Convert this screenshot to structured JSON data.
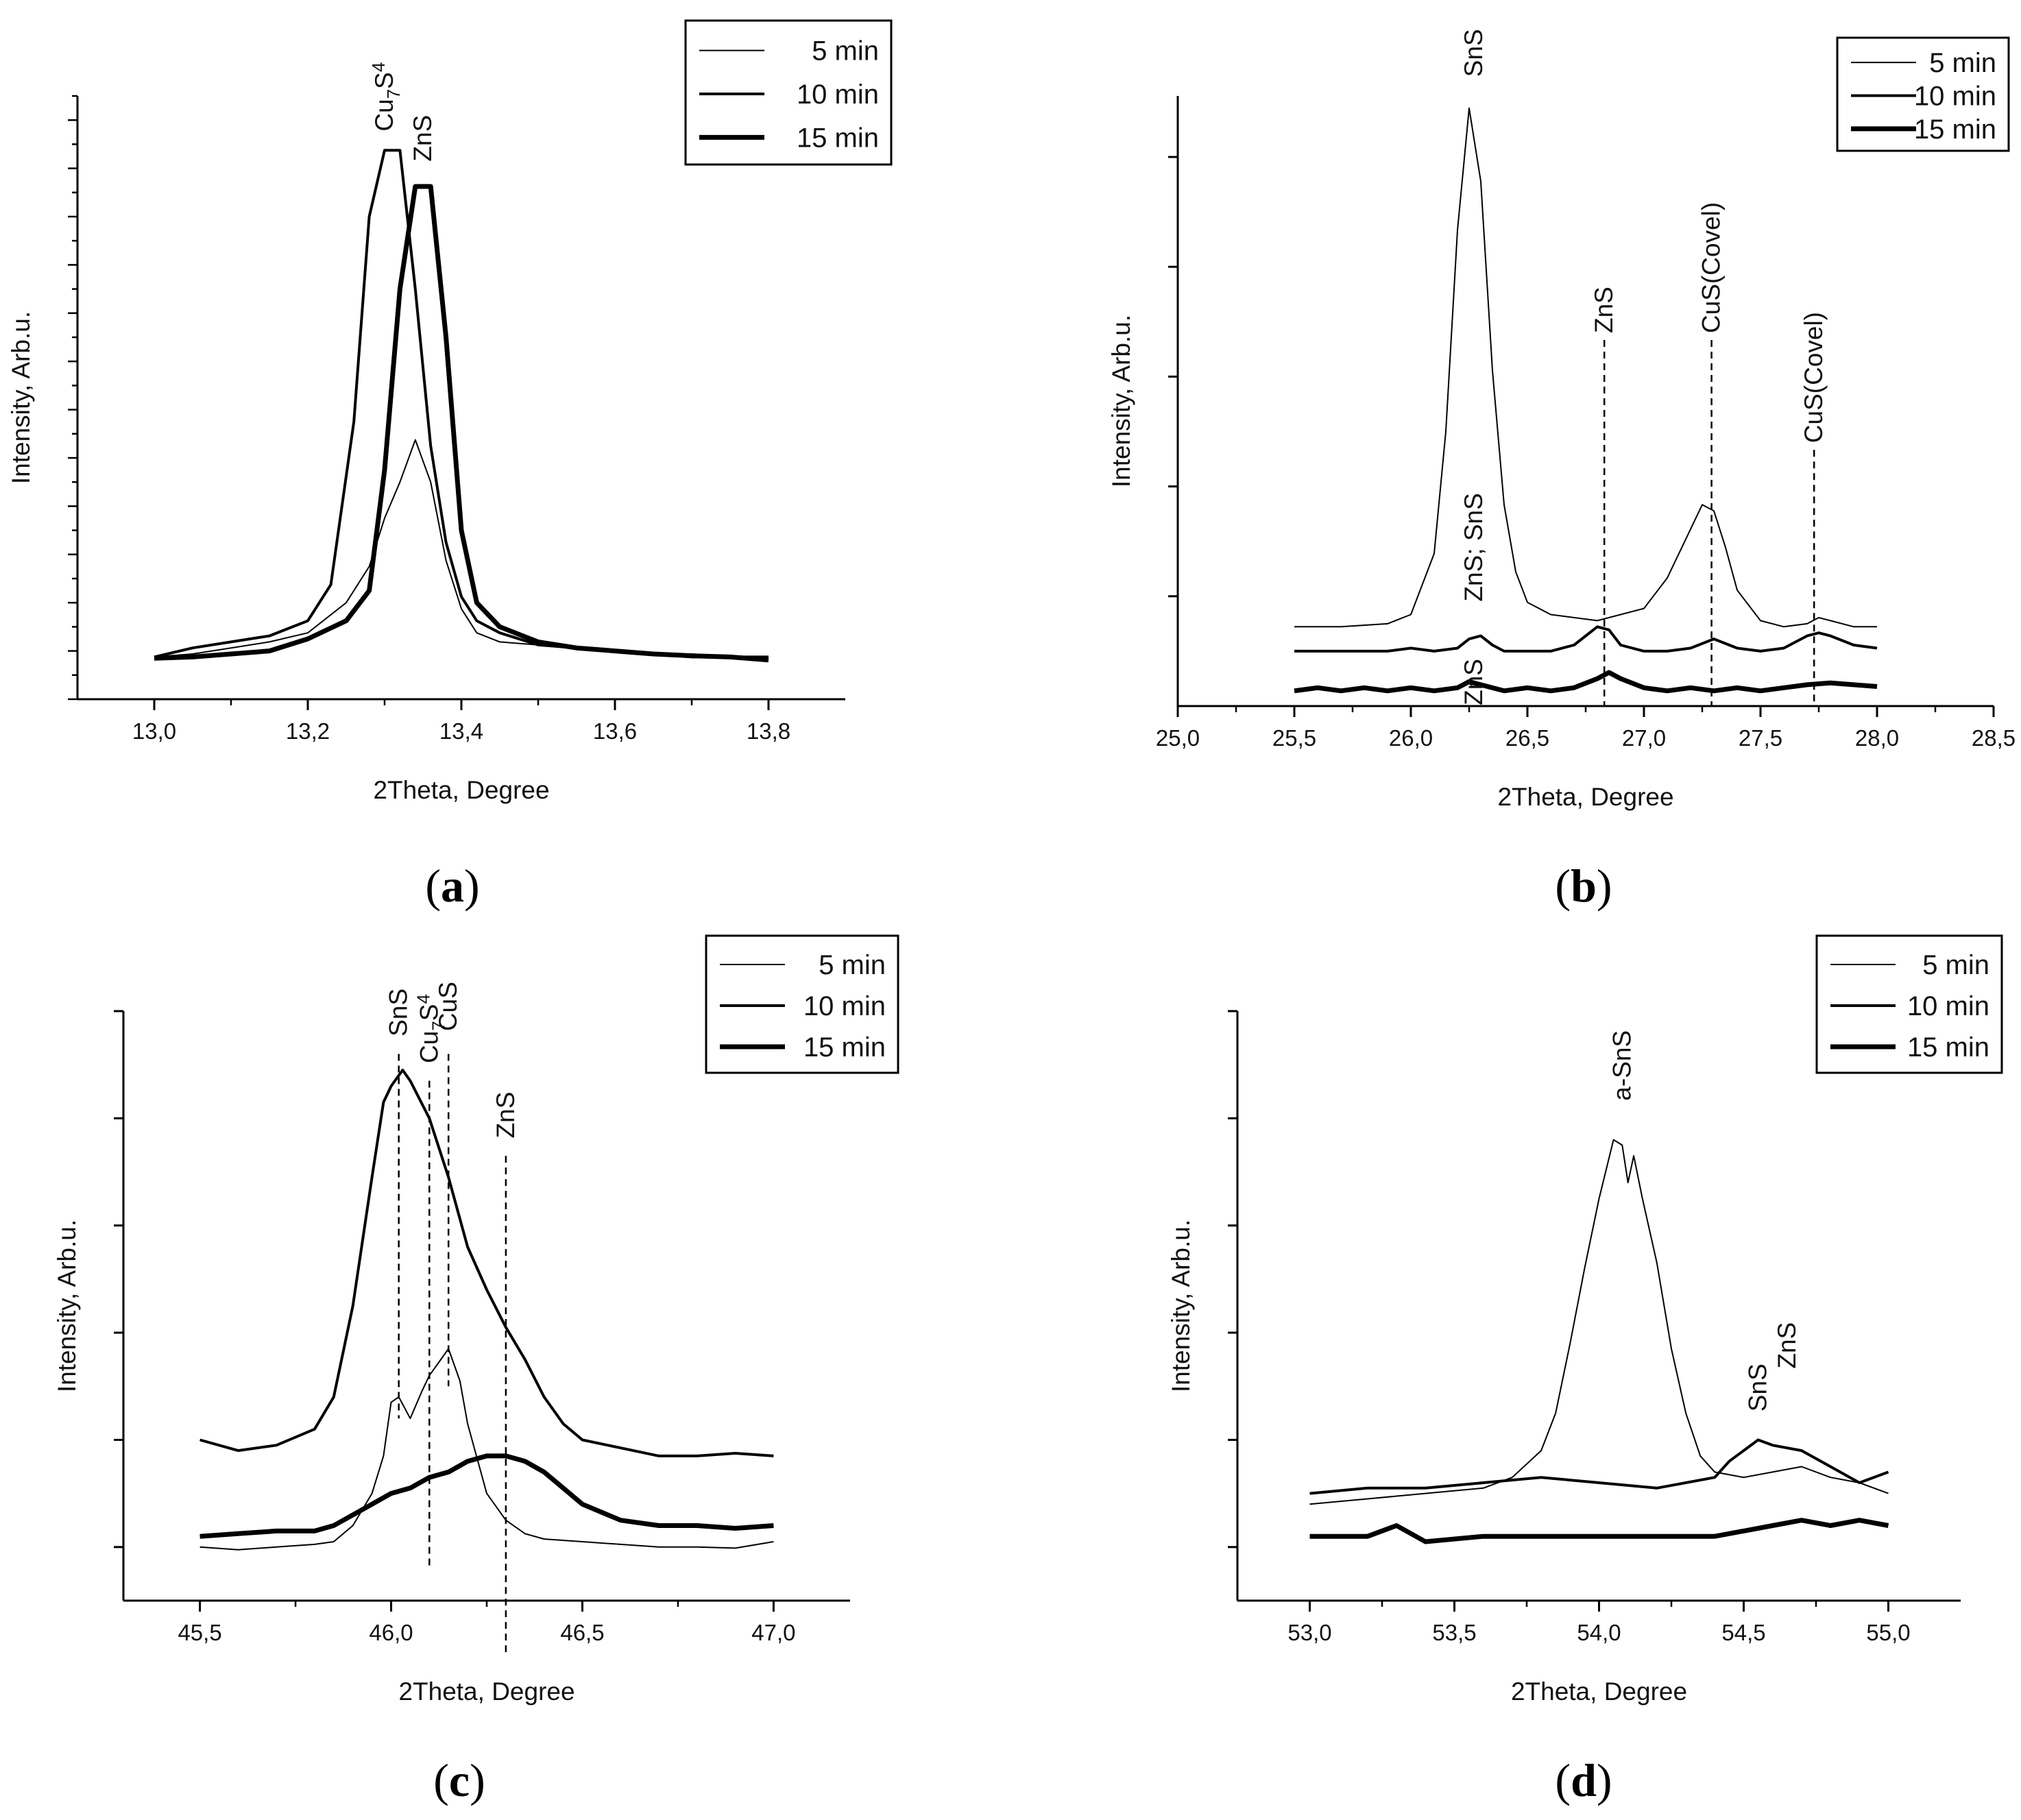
{
  "figure": {
    "legend_entries": [
      "5 min",
      "10 min",
      "15 min"
    ]
  },
  "chart_data": [
    {
      "id": "a",
      "type": "line",
      "panel_label": "a",
      "xlabel": "2Theta, Degree",
      "ylabel": "Intensity, Arb.u.",
      "xlim": [
        12.9,
        13.9
      ],
      "ylim": [
        0,
        1.0
      ],
      "x_ticks": [
        13.0,
        13.2,
        13.4,
        13.6,
        13.8
      ],
      "x_tick_labels": [
        "13,0",
        "13,2",
        "13,4",
        "13,6",
        "13,8"
      ],
      "y_major_ticks": [],
      "y_minor_count": 25,
      "legend": {
        "position": "top-right",
        "entries": [
          "5 min",
          "10 min",
          "15 min"
        ]
      },
      "series": [
        {
          "name": "5 min",
          "x": [
            13.0,
            13.05,
            13.1,
            13.15,
            13.2,
            13.25,
            13.28,
            13.3,
            13.32,
            13.34,
            13.36,
            13.38,
            13.4,
            13.42,
            13.45,
            13.5,
            13.55,
            13.6,
            13.65,
            13.7,
            13.75,
            13.8
          ],
          "values": [
            0.07,
            0.075,
            0.085,
            0.095,
            0.11,
            0.16,
            0.22,
            0.3,
            0.36,
            0.43,
            0.36,
            0.23,
            0.15,
            0.11,
            0.095,
            0.09,
            0.085,
            0.08,
            0.075,
            0.075,
            0.07,
            0.07
          ]
        },
        {
          "name": "10 min",
          "x": [
            13.0,
            13.05,
            13.1,
            13.15,
            13.2,
            13.23,
            13.26,
            13.28,
            13.3,
            13.32,
            13.34,
            13.36,
            13.38,
            13.4,
            13.42,
            13.45,
            13.5,
            13.55,
            13.6,
            13.65,
            13.7,
            13.75,
            13.8
          ],
          "values": [
            0.07,
            0.085,
            0.095,
            0.105,
            0.13,
            0.19,
            0.46,
            0.8,
            0.91,
            0.91,
            0.68,
            0.42,
            0.26,
            0.17,
            0.13,
            0.11,
            0.09,
            0.085,
            0.08,
            0.075,
            0.07,
            0.07,
            0.07
          ]
        },
        {
          "name": "15 min",
          "x": [
            13.0,
            13.05,
            13.1,
            13.15,
            13.2,
            13.25,
            13.28,
            13.3,
            13.32,
            13.34,
            13.36,
            13.38,
            13.4,
            13.42,
            13.45,
            13.5,
            13.55,
            13.6,
            13.65,
            13.7,
            13.75,
            13.8
          ],
          "values": [
            0.068,
            0.07,
            0.075,
            0.08,
            0.1,
            0.13,
            0.18,
            0.38,
            0.68,
            0.85,
            0.85,
            0.6,
            0.28,
            0.16,
            0.12,
            0.095,
            0.085,
            0.08,
            0.075,
            0.072,
            0.07,
            0.065
          ]
        }
      ],
      "annotations": [
        {
          "text": "Cu",
          "sub": "7",
          "text2": "S",
          "sub2": "4",
          "x": 13.3,
          "y": 0.93,
          "vertical": true,
          "line": false
        },
        {
          "text": "ZnS",
          "x": 13.35,
          "y": 0.88,
          "vertical": true,
          "line": false
        }
      ]
    },
    {
      "id": "b",
      "type": "line",
      "panel_label": "b",
      "xlabel": "2Theta, Degree",
      "ylabel": "Intensity, Arb.u.",
      "xlim": [
        25.0,
        28.5
      ],
      "ylim": [
        0,
        1.0
      ],
      "x_ticks": [
        25.0,
        25.5,
        26.0,
        26.5,
        27.0,
        27.5,
        28.0,
        28.5
      ],
      "x_tick_labels": [
        "25,0",
        "25,5",
        "26,0",
        "26,5",
        "27,0",
        "27,5",
        "28,0",
        "28,5"
      ],
      "y_major_ticks": [
        0.18,
        0.36,
        0.54,
        0.72,
        0.9
      ],
      "y_minor_count": 0,
      "legend": {
        "position": "top-right",
        "entries": [
          "5 min",
          "10 min",
          "15 min"
        ]
      },
      "series": [
        {
          "name": "5 min",
          "x": [
            25.5,
            25.7,
            25.9,
            26.0,
            26.1,
            26.15,
            26.2,
            26.25,
            26.3,
            26.35,
            26.4,
            26.45,
            26.5,
            26.6,
            26.8,
            27.0,
            27.1,
            27.2,
            27.25,
            27.3,
            27.35,
            27.4,
            27.5,
            27.6,
            27.7,
            27.75,
            27.8,
            27.9,
            28.0
          ],
          "values": [
            0.13,
            0.13,
            0.135,
            0.15,
            0.25,
            0.45,
            0.78,
            0.98,
            0.86,
            0.55,
            0.33,
            0.22,
            0.17,
            0.15,
            0.14,
            0.16,
            0.21,
            0.29,
            0.33,
            0.32,
            0.26,
            0.19,
            0.14,
            0.13,
            0.135,
            0.145,
            0.14,
            0.13,
            0.13
          ]
        },
        {
          "name": "10 min",
          "x": [
            25.5,
            25.7,
            25.9,
            26.0,
            26.1,
            26.2,
            26.25,
            26.3,
            26.35,
            26.4,
            26.6,
            26.7,
            26.8,
            26.85,
            26.9,
            27.0,
            27.1,
            27.2,
            27.3,
            27.4,
            27.5,
            27.6,
            27.7,
            27.75,
            27.8,
            27.9,
            28.0
          ],
          "values": [
            0.09,
            0.09,
            0.09,
            0.095,
            0.09,
            0.095,
            0.11,
            0.115,
            0.1,
            0.09,
            0.09,
            0.1,
            0.13,
            0.125,
            0.1,
            0.09,
            0.09,
            0.095,
            0.11,
            0.095,
            0.09,
            0.095,
            0.115,
            0.12,
            0.115,
            0.1,
            0.095
          ]
        },
        {
          "name": "15 min",
          "x": [
            25.5,
            25.6,
            25.7,
            25.8,
            25.9,
            26.0,
            26.1,
            26.2,
            26.25,
            26.3,
            26.4,
            26.5,
            26.6,
            26.7,
            26.8,
            26.85,
            26.9,
            27.0,
            27.1,
            27.2,
            27.3,
            27.4,
            27.5,
            27.6,
            27.7,
            27.8,
            27.9,
            28.0
          ],
          "values": [
            0.025,
            0.03,
            0.025,
            0.03,
            0.025,
            0.03,
            0.025,
            0.03,
            0.04,
            0.035,
            0.025,
            0.03,
            0.025,
            0.03,
            0.045,
            0.055,
            0.045,
            0.03,
            0.025,
            0.03,
            0.025,
            0.03,
            0.025,
            0.03,
            0.035,
            0.038,
            0.035,
            0.032
          ]
        }
      ],
      "annotations": [
        {
          "text": "SnS",
          "x": 26.27,
          "y": 1.02,
          "vertical": true,
          "line": false
        },
        {
          "text": "ZnS; SnS",
          "x": 26.27,
          "y": 0.16,
          "vertical": true,
          "line": false
        },
        {
          "text": "ZnS",
          "x": 26.27,
          "y": -0.01,
          "vertical": true,
          "line": false
        },
        {
          "text": "ZnS",
          "x": 26.83,
          "y": 0.6,
          "vertical": true,
          "line": true,
          "line_from": 0.6,
          "line_to": 0.0
        },
        {
          "text": "CuS(Covel)",
          "x": 27.29,
          "y": 0.6,
          "vertical": true,
          "line": true,
          "line_from": 0.6,
          "line_to": 0.0
        },
        {
          "text": "CuS(Covel)",
          "x": 27.73,
          "y": 0.42,
          "vertical": true,
          "line": true,
          "line_from": 0.42,
          "line_to": 0.0
        }
      ]
    },
    {
      "id": "c",
      "type": "line",
      "panel_label": "c",
      "xlabel": "2Theta, Degree",
      "ylabel": "Intensity, Arb.u.",
      "xlim": [
        45.3,
        47.2
      ],
      "ylim": [
        0,
        1.1
      ],
      "x_ticks": [
        45.5,
        46.0,
        46.5,
        47.0
      ],
      "x_tick_labels": [
        "45,5",
        "46,0",
        "46,5",
        "47,0"
      ],
      "y_major_ticks": [
        0.1,
        0.3,
        0.5,
        0.7,
        0.9,
        1.1
      ],
      "y_minor_count": 0,
      "legend": {
        "position": "top-right",
        "entries": [
          "5 min",
          "10 min",
          "15 min"
        ]
      },
      "series": [
        {
          "name": "5 min",
          "x": [
            45.5,
            45.6,
            45.7,
            45.8,
            45.85,
            45.9,
            45.95,
            45.98,
            46.0,
            46.02,
            46.05,
            46.08,
            46.1,
            46.12,
            46.15,
            46.18,
            46.2,
            46.25,
            46.3,
            46.35,
            46.4,
            46.5,
            46.6,
            46.7,
            46.8,
            46.9,
            47.0
          ],
          "values": [
            0.1,
            0.095,
            0.1,
            0.105,
            0.11,
            0.14,
            0.2,
            0.27,
            0.37,
            0.38,
            0.34,
            0.39,
            0.42,
            0.44,
            0.47,
            0.41,
            0.33,
            0.2,
            0.15,
            0.125,
            0.115,
            0.11,
            0.105,
            0.1,
            0.1,
            0.098,
            0.11
          ]
        },
        {
          "name": "10 min",
          "x": [
            45.5,
            45.6,
            45.7,
            45.8,
            45.85,
            45.9,
            45.95,
            45.98,
            46.0,
            46.03,
            46.05,
            46.1,
            46.15,
            46.2,
            46.25,
            46.3,
            46.35,
            46.4,
            46.45,
            46.5,
            46.6,
            46.7,
            46.8,
            46.9,
            47.0
          ],
          "values": [
            0.3,
            0.28,
            0.29,
            0.32,
            0.38,
            0.55,
            0.79,
            0.93,
            0.96,
            0.99,
            0.97,
            0.9,
            0.79,
            0.66,
            0.58,
            0.51,
            0.45,
            0.38,
            0.33,
            0.3,
            0.285,
            0.27,
            0.27,
            0.275,
            0.27
          ]
        },
        {
          "name": "15 min",
          "x": [
            45.5,
            45.6,
            45.7,
            45.8,
            45.85,
            45.9,
            45.95,
            46.0,
            46.05,
            46.1,
            46.15,
            46.2,
            46.25,
            46.3,
            46.35,
            46.4,
            46.45,
            46.5,
            46.6,
            46.7,
            46.8,
            46.9,
            47.0
          ],
          "values": [
            0.12,
            0.125,
            0.13,
            0.13,
            0.14,
            0.16,
            0.18,
            0.2,
            0.21,
            0.23,
            0.24,
            0.26,
            0.27,
            0.27,
            0.26,
            0.24,
            0.21,
            0.18,
            0.15,
            0.14,
            0.14,
            0.135,
            0.14
          ]
        }
      ],
      "annotations": [
        {
          "text": "SnS",
          "x": 46.02,
          "y": 1.04,
          "vertical": true,
          "line": true,
          "line_from": 1.02,
          "line_to": 0.34
        },
        {
          "text": "Cu",
          "sub": "7",
          "text2": "S",
          "sub2": "4",
          "x": 46.1,
          "y": 0.99,
          "vertical": true,
          "line": true,
          "line_from": 0.97,
          "line_to": 0.06
        },
        {
          "text": "CuS",
          "x": 46.15,
          "y": 1.05,
          "vertical": true,
          "line": true,
          "line_from": 1.02,
          "line_to": 0.4
        },
        {
          "text": "ZnS",
          "x": 46.3,
          "y": 0.85,
          "vertical": true,
          "line": true,
          "line_from": 0.83,
          "line_to": -0.1
        }
      ]
    },
    {
      "id": "d",
      "type": "line",
      "panel_label": "d",
      "xlabel": "2Theta, Degree",
      "ylabel": "Intensity, Arb.u.",
      "xlim": [
        52.75,
        55.25
      ],
      "ylim": [
        0,
        1.1
      ],
      "x_ticks": [
        53.0,
        53.5,
        54.0,
        54.5,
        55.0
      ],
      "x_tick_labels": [
        "53,0",
        "53,5",
        "54,0",
        "54,5",
        "55,0"
      ],
      "y_major_ticks": [
        0.1,
        0.3,
        0.5,
        0.7,
        0.9,
        1.1
      ],
      "y_minor_count": 0,
      "legend": {
        "position": "top-right",
        "entries": [
          "5 min",
          "10 min",
          "15 min"
        ]
      },
      "series": [
        {
          "name": "5 min",
          "x": [
            53.0,
            53.2,
            53.4,
            53.6,
            53.7,
            53.8,
            53.85,
            53.9,
            53.95,
            54.0,
            54.05,
            54.08,
            54.1,
            54.12,
            54.15,
            54.2,
            54.25,
            54.3,
            54.35,
            54.4,
            54.5,
            54.6,
            54.7,
            54.8,
            54.9,
            55.0
          ],
          "values": [
            0.18,
            0.19,
            0.2,
            0.21,
            0.23,
            0.28,
            0.35,
            0.48,
            0.62,
            0.75,
            0.86,
            0.85,
            0.78,
            0.83,
            0.75,
            0.63,
            0.47,
            0.35,
            0.27,
            0.24,
            0.23,
            0.24,
            0.25,
            0.23,
            0.22,
            0.2
          ]
        },
        {
          "name": "10 min",
          "x": [
            53.0,
            53.2,
            53.4,
            53.6,
            53.8,
            54.0,
            54.2,
            54.4,
            54.45,
            54.5,
            54.55,
            54.6,
            54.7,
            54.8,
            54.9,
            55.0
          ],
          "values": [
            0.2,
            0.21,
            0.21,
            0.22,
            0.23,
            0.22,
            0.21,
            0.23,
            0.26,
            0.28,
            0.3,
            0.29,
            0.28,
            0.25,
            0.22,
            0.24
          ]
        },
        {
          "name": "15 min",
          "x": [
            53.0,
            53.2,
            53.3,
            53.4,
            53.6,
            53.8,
            54.0,
            54.2,
            54.4,
            54.5,
            54.6,
            54.7,
            54.8,
            54.9,
            55.0
          ],
          "values": [
            0.12,
            0.12,
            0.14,
            0.11,
            0.12,
            0.12,
            0.12,
            0.12,
            0.12,
            0.13,
            0.14,
            0.15,
            0.14,
            0.15,
            0.14
          ]
        }
      ],
      "annotations": [
        {
          "text": "a-SnS",
          "x": 54.08,
          "y": 0.92,
          "vertical": true,
          "line": false
        },
        {
          "text": "SnS",
          "x": 54.55,
          "y": 0.34,
          "vertical": true,
          "line": false
        },
        {
          "text": "ZnS",
          "x": 54.65,
          "y": 0.42,
          "vertical": true,
          "line": false
        }
      ]
    }
  ]
}
